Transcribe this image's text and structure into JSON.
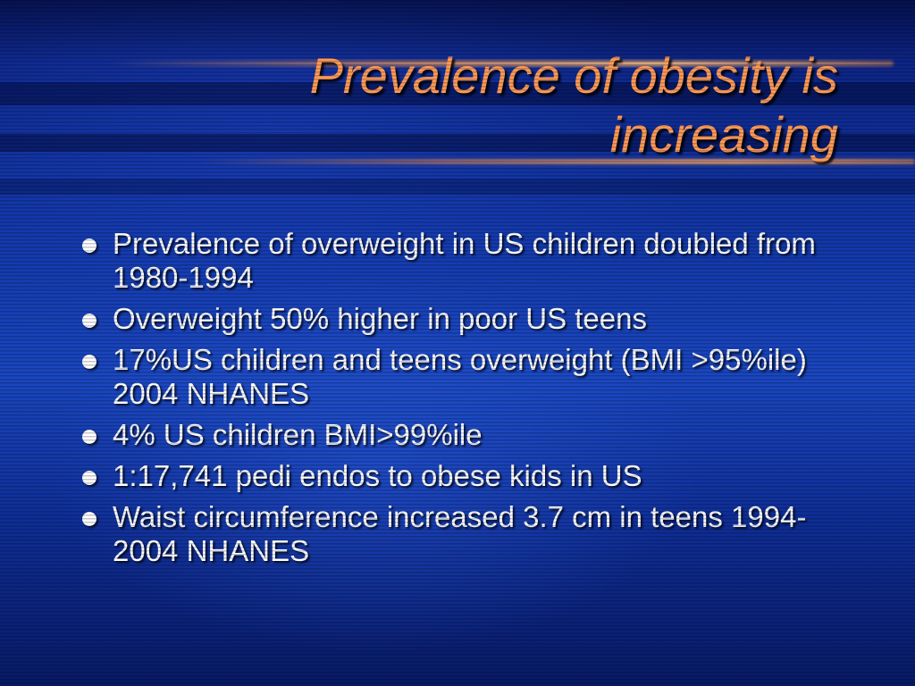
{
  "slide": {
    "title": "Prevalence of obesity is increasing",
    "title_color": "#ff9a55",
    "text_color": "#ffffff",
    "background_color": "#1238a8",
    "bullets": [
      {
        "text": "Prevalence of overweight in US children doubled from 1980-1994"
      },
      {
        "text": "Overweight 50% higher in poor US teens"
      },
      {
        "text": "17%US children and teens overweight (BMI >95%ile) 2004 NHANES"
      },
      {
        "text": "4% US children BMI>99%ile"
      },
      {
        "text": "1:17,741 pedi endos to obese kids in US"
      },
      {
        "text": "Waist circumference increased 3.7 cm in teens 1994-2004 NHANES"
      }
    ]
  }
}
